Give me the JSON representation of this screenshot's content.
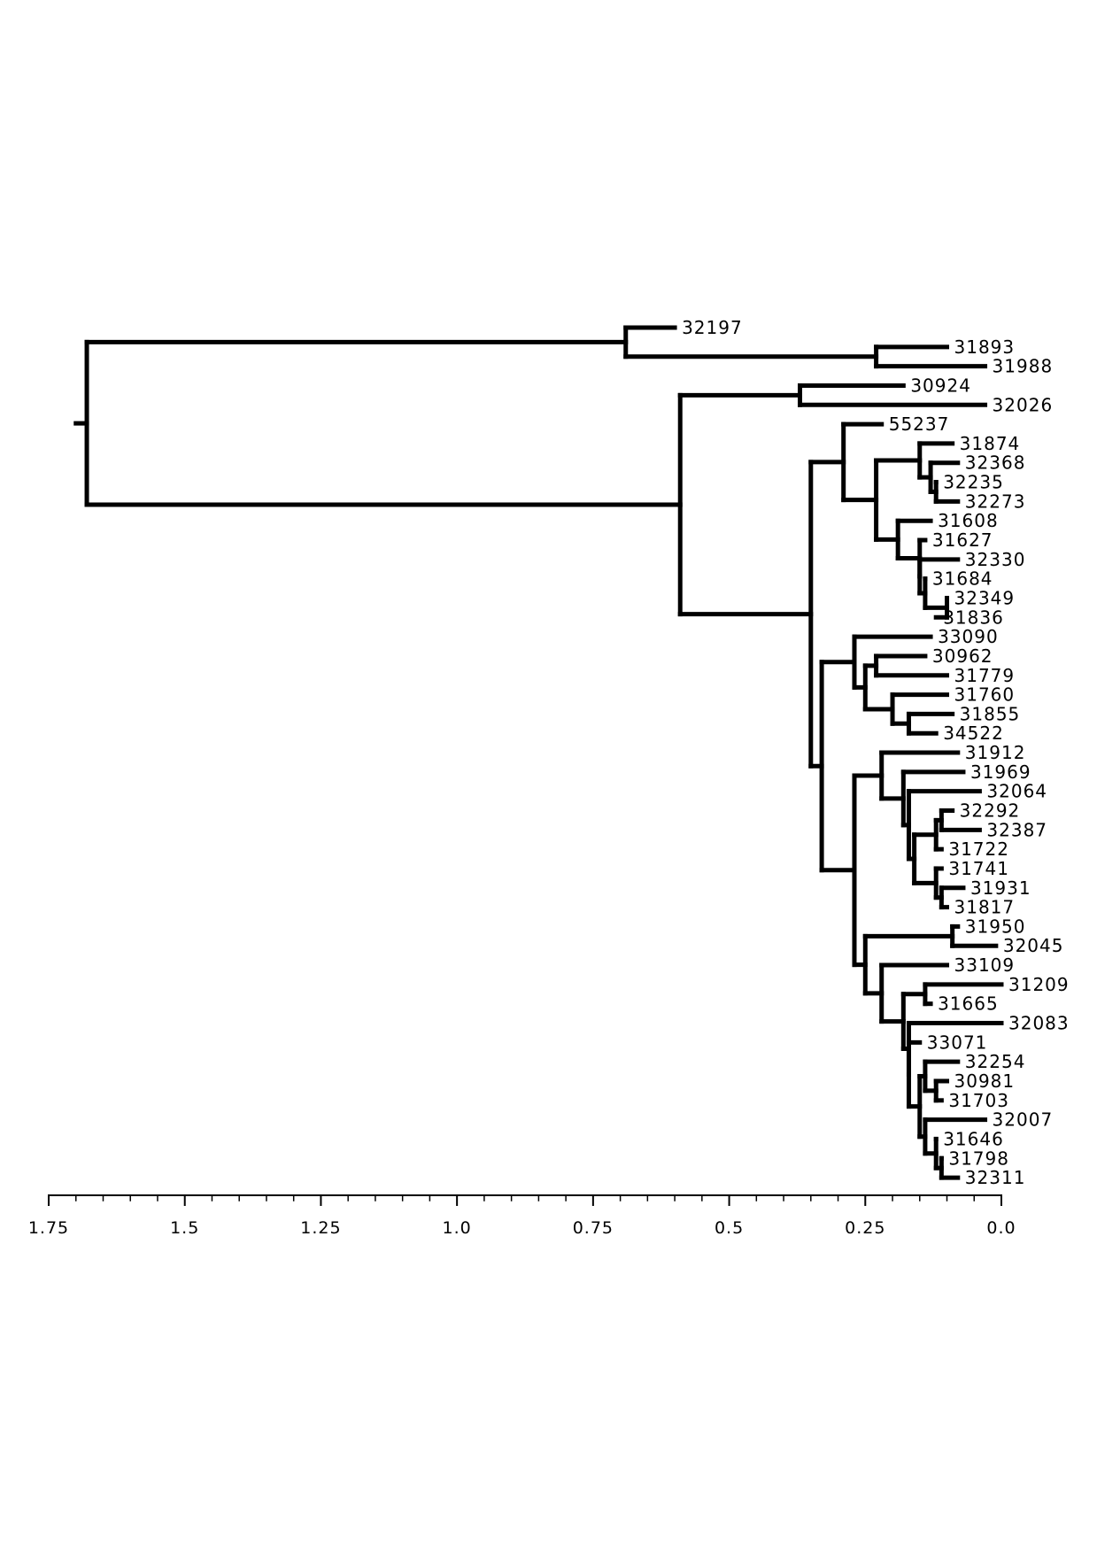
{
  "chart_data": {
    "type": "dendrogram",
    "orientation": "root-left, leaves-right",
    "xlim": [
      1.75,
      0.0
    ],
    "x_ticks": [
      {
        "value": 1.75,
        "label": "1.75"
      },
      {
        "value": 1.5,
        "label": "1.5"
      },
      {
        "value": 1.25,
        "label": "1.25"
      },
      {
        "value": 1.0,
        "label": "1.0"
      },
      {
        "value": 0.75,
        "label": "0.75"
      },
      {
        "value": 0.5,
        "label": "0.5"
      },
      {
        "value": 0.25,
        "label": "0.25"
      },
      {
        "value": 0.0,
        "label": "0.0"
      }
    ],
    "minor_tick_step": 0.05,
    "leaves": [
      {
        "name": "32197",
        "height": 0.6
      },
      {
        "name": "31893",
        "height": 0.1
      },
      {
        "name": "31988",
        "height": 0.03
      },
      {
        "name": "30924",
        "height": 0.18
      },
      {
        "name": "32026",
        "height": 0.03
      },
      {
        "name": "55237",
        "height": 0.22
      },
      {
        "name": "31874",
        "height": 0.09
      },
      {
        "name": "32368",
        "height": 0.08
      },
      {
        "name": "32235",
        "height": 0.12
      },
      {
        "name": "32273",
        "height": 0.08
      },
      {
        "name": "31608",
        "height": 0.13
      },
      {
        "name": "31627",
        "height": 0.14
      },
      {
        "name": "32330",
        "height": 0.08
      },
      {
        "name": "31684",
        "height": 0.14
      },
      {
        "name": "32349",
        "height": 0.1
      },
      {
        "name": "31836",
        "height": 0.12
      },
      {
        "name": "33090",
        "height": 0.13
      },
      {
        "name": "30962",
        "height": 0.14
      },
      {
        "name": "31779",
        "height": 0.1
      },
      {
        "name": "31760",
        "height": 0.1
      },
      {
        "name": "31855",
        "height": 0.09
      },
      {
        "name": "34522",
        "height": 0.12
      },
      {
        "name": "31912",
        "height": 0.08
      },
      {
        "name": "31969",
        "height": 0.07
      },
      {
        "name": "32064",
        "height": 0.04
      },
      {
        "name": "32292",
        "height": 0.09
      },
      {
        "name": "32387",
        "height": 0.04
      },
      {
        "name": "31722",
        "height": 0.11
      },
      {
        "name": "31741",
        "height": 0.11
      },
      {
        "name": "31931",
        "height": 0.07
      },
      {
        "name": "31817",
        "height": 0.1
      },
      {
        "name": "31950",
        "height": 0.08
      },
      {
        "name": "32045",
        "height": 0.01
      },
      {
        "name": "33109",
        "height": 0.1
      },
      {
        "name": "31209",
        "height": 0.0
      },
      {
        "name": "31665",
        "height": 0.13
      },
      {
        "name": "32083",
        "height": 0.0
      },
      {
        "name": "33071",
        "height": 0.15
      },
      {
        "name": "32254",
        "height": 0.08
      },
      {
        "name": "30981",
        "height": 0.1
      },
      {
        "name": "31703",
        "height": 0.11
      },
      {
        "name": "32007",
        "height": 0.03
      },
      {
        "name": "31646",
        "height": 0.12
      },
      {
        "name": "31798",
        "height": 0.11
      },
      {
        "name": "32311",
        "height": 0.08
      }
    ],
    "merges": [
      {
        "id": "A",
        "height": 0.69,
        "children": [
          "32197",
          "B"
        ]
      },
      {
        "id": "B",
        "height": 0.23,
        "children": [
          "31893",
          "31988"
        ]
      },
      {
        "id": "C",
        "height": 0.37,
        "children": [
          "30924",
          "32026"
        ]
      },
      {
        "id": "D",
        "height": 0.12,
        "children": [
          "32235",
          "32273"
        ]
      },
      {
        "id": "E",
        "height": 0.13,
        "children": [
          "32368",
          "D"
        ]
      },
      {
        "id": "F",
        "height": 0.15,
        "children": [
          "31874",
          "E"
        ]
      },
      {
        "id": "G",
        "height": 0.1,
        "children": [
          "32349",
          "31836"
        ]
      },
      {
        "id": "H",
        "height": 0.14,
        "children": [
          "31684",
          "G"
        ]
      },
      {
        "id": "I",
        "height": 0.15,
        "children": [
          "32330",
          "H"
        ]
      },
      {
        "id": "J",
        "height": 0.15,
        "children": [
          "31627",
          "I"
        ]
      },
      {
        "id": "K",
        "height": 0.19,
        "children": [
          "31608",
          "J"
        ]
      },
      {
        "id": "L",
        "height": 0.23,
        "children": [
          "F",
          "K"
        ]
      },
      {
        "id": "M",
        "height": 0.29,
        "children": [
          "55237",
          "L"
        ]
      },
      {
        "id": "N",
        "height": 0.23,
        "children": [
          "30962",
          "31779"
        ]
      },
      {
        "id": "O",
        "height": 0.17,
        "children": [
          "31855",
          "34522"
        ]
      },
      {
        "id": "P",
        "height": 0.2,
        "children": [
          "31760",
          "O"
        ]
      },
      {
        "id": "Q",
        "height": 0.25,
        "children": [
          "N",
          "P"
        ]
      },
      {
        "id": "R",
        "height": 0.27,
        "children": [
          "33090",
          "Q"
        ]
      },
      {
        "id": "S",
        "height": 0.11,
        "children": [
          "32292",
          "32387"
        ]
      },
      {
        "id": "T",
        "height": 0.12,
        "children": [
          "S",
          "31722"
        ]
      },
      {
        "id": "U",
        "height": 0.11,
        "children": [
          "31931",
          "31817"
        ]
      },
      {
        "id": "V",
        "height": 0.12,
        "children": [
          "31741",
          "U"
        ]
      },
      {
        "id": "W",
        "height": 0.16,
        "children": [
          "T",
          "V"
        ]
      },
      {
        "id": "X",
        "height": 0.17,
        "children": [
          "32064",
          "W"
        ]
      },
      {
        "id": "Y",
        "height": 0.18,
        "children": [
          "31969",
          "X"
        ]
      },
      {
        "id": "Z",
        "height": 0.22,
        "children": [
          "31912",
          "Y"
        ]
      },
      {
        "id": "AA",
        "height": 0.09,
        "children": [
          "31950",
          "32045"
        ]
      },
      {
        "id": "AB",
        "height": 0.14,
        "children": [
          "31209",
          "31665"
        ]
      },
      {
        "id": "AC",
        "height": 0.12,
        "children": [
          "30981",
          "31703"
        ]
      },
      {
        "id": "AD",
        "height": 0.14,
        "children": [
          "32254",
          "AC"
        ]
      },
      {
        "id": "AE",
        "height": 0.11,
        "children": [
          "31798",
          "32311"
        ]
      },
      {
        "id": "AF",
        "height": 0.12,
        "children": [
          "31646",
          "AE"
        ]
      },
      {
        "id": "AG",
        "height": 0.14,
        "children": [
          "32007",
          "AF"
        ]
      },
      {
        "id": "AH",
        "height": 0.15,
        "children": [
          "AD",
          "AG"
        ]
      },
      {
        "id": "AI",
        "height": 0.17,
        "children": [
          "33071",
          "AH"
        ]
      },
      {
        "id": "AJ",
        "height": 0.17,
        "children": [
          "32083",
          "AI"
        ]
      },
      {
        "id": "AK",
        "height": 0.18,
        "children": [
          "AB",
          "AJ"
        ]
      },
      {
        "id": "AL",
        "height": 0.22,
        "children": [
          "33109",
          "AK"
        ]
      },
      {
        "id": "AM",
        "height": 0.25,
        "children": [
          "AA",
          "AL"
        ]
      },
      {
        "id": "AN",
        "height": 0.27,
        "children": [
          "Z",
          "AM"
        ]
      },
      {
        "id": "AO",
        "height": 0.33,
        "children": [
          "R",
          "AN"
        ]
      },
      {
        "id": "AP",
        "height": 0.35,
        "children": [
          "M",
          "AO"
        ]
      },
      {
        "id": "AQ",
        "height": 0.59,
        "children": [
          "C",
          "AP"
        ]
      },
      {
        "id": "ROOT",
        "height": 1.68,
        "children": [
          "A",
          "AQ"
        ]
      }
    ],
    "root_stub_height": 1.7
  }
}
